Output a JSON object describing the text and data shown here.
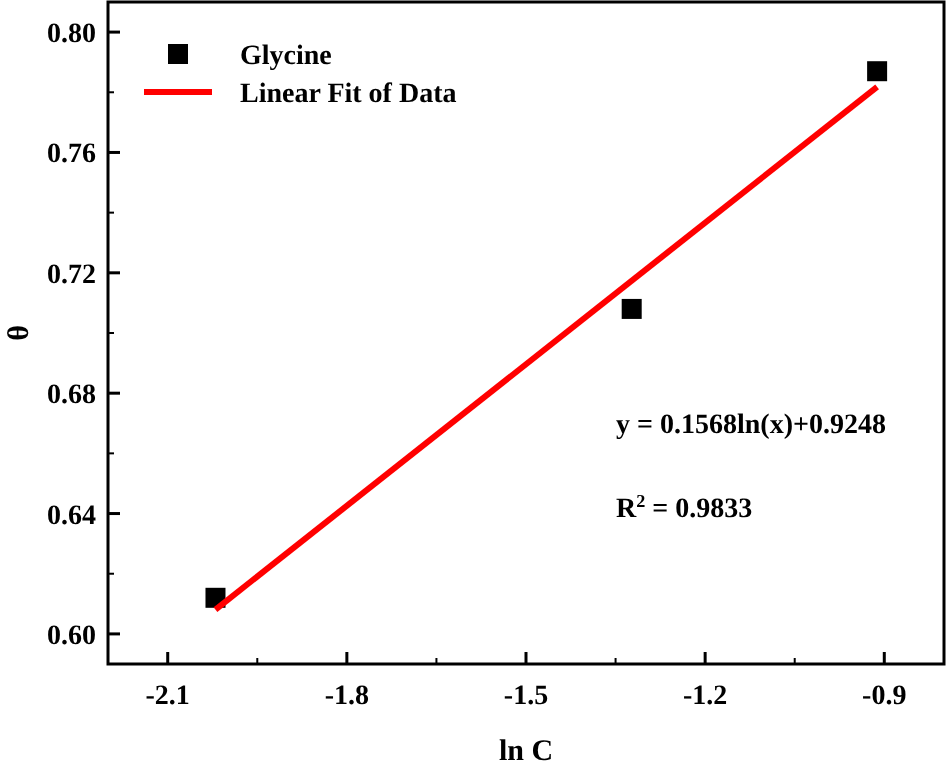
{
  "chart_data": {
    "type": "scatter",
    "xlabel": "ln C",
    "ylabel": "θ",
    "xlim": [
      -2.2,
      -0.8
    ],
    "xticks": [
      -2.1,
      -1.8,
      -1.5,
      -1.2,
      -0.9
    ],
    "ylim": [
      0.59,
      0.81
    ],
    "yticks": [
      {
        "value": 0.6,
        "label": "0.60"
      },
      {
        "value": 0.64,
        "label": "0.64"
      },
      {
        "value": 0.68,
        "label": "0.68"
      },
      {
        "value": 0.72,
        "label": "0.72"
      },
      {
        "value": 0.76,
        "label": "0.76"
      },
      {
        "value": 0.8,
        "label": "0.80"
      }
    ],
    "series": [
      {
        "name": "Glycine",
        "color": "#000000",
        "marker": "square",
        "x": [
          -2.02,
          -1.323,
          -0.912
        ],
        "values": [
          0.612,
          0.708,
          0.787
        ]
      },
      {
        "name": "Linear Fit of Data",
        "type": "line",
        "color": "#ff0000",
        "marker": "none",
        "line_style": "solid",
        "x": [
          -2.02,
          -0.912
        ],
        "values": [
          0.6081,
          0.7818
        ]
      }
    ],
    "annotations": [
      "y = 0.1568ln(x)+0.9248",
      "R$^{2}$ = 0.9833"
    ],
    "legend": "top left",
    "grid": false
  }
}
